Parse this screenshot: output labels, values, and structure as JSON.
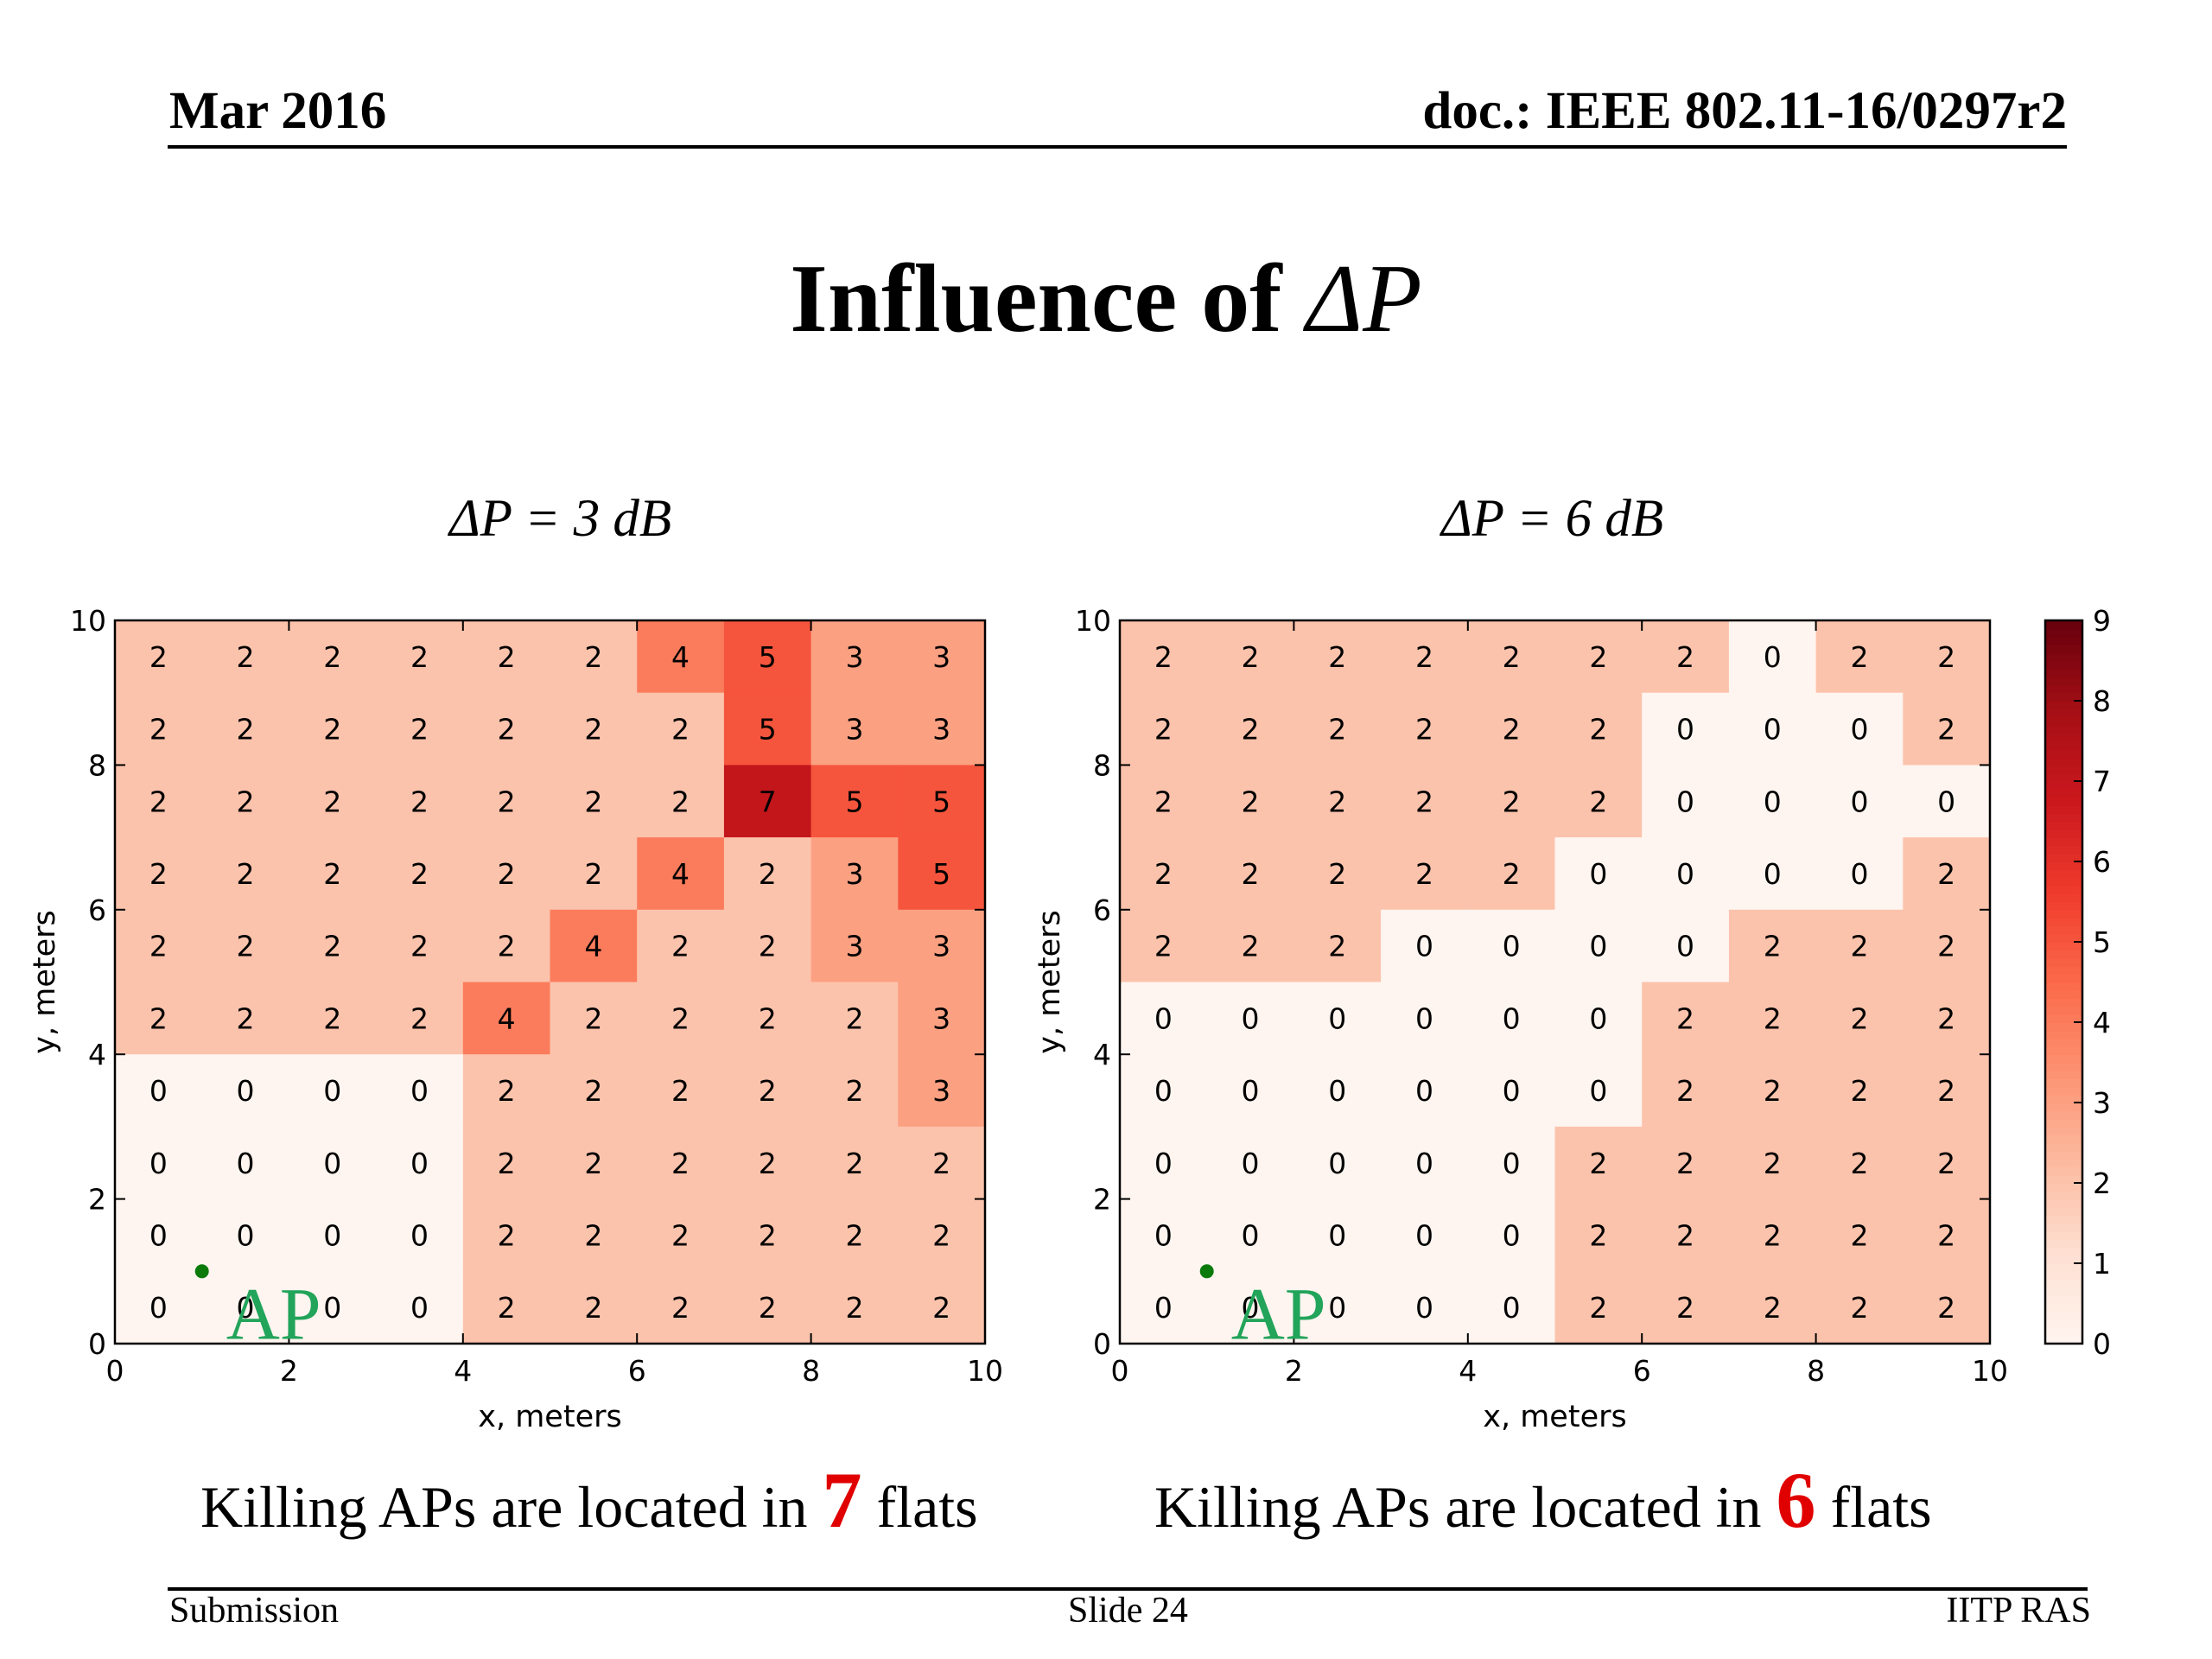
{
  "header": {
    "date": "Mar 2016",
    "doc": "doc.: IEEE 802.11-16/0297r2"
  },
  "title": {
    "text": "Influence of ",
    "symbol": "ΔP"
  },
  "footer": {
    "left": "Submission",
    "center": "Slide 24",
    "right": "IITP RAS"
  },
  "captions": [
    {
      "prefix": "Killing APs are located in ",
      "number": "7",
      "suffix": " flats"
    },
    {
      "prefix": "Killing APs are located in ",
      "number": "6",
      "suffix": " flats"
    }
  ],
  "colorbar": {
    "min": 0,
    "max": 9,
    "ticks": [
      "0",
      "1",
      "2",
      "3",
      "4",
      "5",
      "6",
      "7",
      "8",
      "9"
    ]
  },
  "chart_data": [
    {
      "type": "heatmap",
      "title": "ΔP = 3 dB",
      "xlabel": "x, meters",
      "ylabel": "y, meters",
      "xlim": [
        0,
        10
      ],
      "ylim": [
        0,
        10
      ],
      "xticks": [
        "0",
        "2",
        "4",
        "6",
        "8",
        "10"
      ],
      "yticks": [
        "0",
        "2",
        "4",
        "6",
        "8",
        "10"
      ],
      "rows_top_to_bottom": [
        [
          2,
          2,
          2,
          2,
          2,
          2,
          4,
          5,
          3,
          3
        ],
        [
          2,
          2,
          2,
          2,
          2,
          2,
          2,
          5,
          3,
          3
        ],
        [
          2,
          2,
          2,
          2,
          2,
          2,
          2,
          7,
          5,
          5
        ],
        [
          2,
          2,
          2,
          2,
          2,
          2,
          4,
          2,
          3,
          5
        ],
        [
          2,
          2,
          2,
          2,
          2,
          4,
          2,
          2,
          3,
          3
        ],
        [
          2,
          2,
          2,
          2,
          4,
          2,
          2,
          2,
          2,
          3
        ],
        [
          0,
          0,
          0,
          0,
          2,
          2,
          2,
          2,
          2,
          3
        ],
        [
          0,
          0,
          0,
          0,
          2,
          2,
          2,
          2,
          2,
          2
        ],
        [
          0,
          0,
          0,
          0,
          2,
          2,
          2,
          2,
          2,
          2
        ],
        [
          0,
          0,
          0,
          0,
          2,
          2,
          2,
          2,
          2,
          2
        ]
      ],
      "ap": {
        "label": "AP",
        "x": 1,
        "y": 1
      }
    },
    {
      "type": "heatmap",
      "title": "ΔP = 6 dB",
      "xlabel": "x, meters",
      "ylabel": "y, meters",
      "xlim": [
        0,
        10
      ],
      "ylim": [
        0,
        10
      ],
      "xticks": [
        "0",
        "2",
        "4",
        "6",
        "8",
        "10"
      ],
      "yticks": [
        "0",
        "2",
        "4",
        "6",
        "8",
        "10"
      ],
      "rows_top_to_bottom": [
        [
          2,
          2,
          2,
          2,
          2,
          2,
          2,
          0,
          2,
          2
        ],
        [
          2,
          2,
          2,
          2,
          2,
          2,
          0,
          0,
          0,
          2
        ],
        [
          2,
          2,
          2,
          2,
          2,
          2,
          0,
          0,
          0,
          0
        ],
        [
          2,
          2,
          2,
          2,
          2,
          0,
          0,
          0,
          0,
          2
        ],
        [
          2,
          2,
          2,
          0,
          0,
          0,
          0,
          2,
          2,
          2
        ],
        [
          0,
          0,
          0,
          0,
          0,
          0,
          2,
          2,
          2,
          2
        ],
        [
          0,
          0,
          0,
          0,
          0,
          0,
          2,
          2,
          2,
          2
        ],
        [
          0,
          0,
          0,
          0,
          0,
          2,
          2,
          2,
          2,
          2
        ],
        [
          0,
          0,
          0,
          0,
          0,
          2,
          2,
          2,
          2,
          2
        ],
        [
          0,
          0,
          0,
          0,
          0,
          2,
          2,
          2,
          2,
          2
        ]
      ],
      "ap": {
        "label": "AP",
        "x": 1,
        "y": 1
      }
    }
  ]
}
